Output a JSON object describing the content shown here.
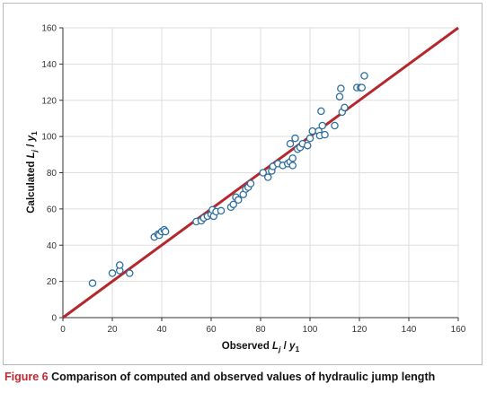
{
  "chart_data": {
    "type": "scatter",
    "xlabel": {
      "prefix": "Observed ",
      "var": "L",
      "sub1": "j",
      "mid": " / ",
      "var2": "y",
      "sub2": "1"
    },
    "ylabel": {
      "prefix": "Calculated ",
      "var": "L",
      "sub1": "j",
      "mid": " / ",
      "var2": "y",
      "sub2": "1"
    },
    "xlim": [
      0,
      160
    ],
    "ylim": [
      0,
      160
    ],
    "xticks": [
      0,
      20,
      40,
      60,
      80,
      100,
      120,
      140,
      160
    ],
    "yticks": [
      0,
      20,
      40,
      60,
      80,
      100,
      120,
      140,
      160
    ],
    "grid": true,
    "colors": {
      "points": "#2f6f9f",
      "line": "#b5272d",
      "grid": "#dedede"
    },
    "reference_line": {
      "x": [
        0,
        160
      ],
      "y": [
        0,
        160
      ]
    },
    "points": [
      [
        12,
        19
      ],
      [
        20,
        24.5
      ],
      [
        23,
        26
      ],
      [
        23,
        29
      ],
      [
        27,
        24.5
      ],
      [
        37,
        44.5
      ],
      [
        38.5,
        46
      ],
      [
        39,
        45.5
      ],
      [
        40,
        47.5
      ],
      [
        41,
        48.5
      ],
      [
        41.5,
        47.5
      ],
      [
        54,
        53
      ],
      [
        56,
        53.5
      ],
      [
        57,
        55
      ],
      [
        58.5,
        56
      ],
      [
        60,
        57
      ],
      [
        60.5,
        59.5
      ],
      [
        61,
        56
      ],
      [
        62,
        58.5
      ],
      [
        64,
        59
      ],
      [
        68,
        61
      ],
      [
        69,
        62.5
      ],
      [
        70,
        66.5
      ],
      [
        71,
        65
      ],
      [
        73,
        68
      ],
      [
        74,
        71
      ],
      [
        75,
        72
      ],
      [
        76,
        74
      ],
      [
        81,
        80
      ],
      [
        83,
        77.5
      ],
      [
        84.5,
        81
      ],
      [
        85,
        83.5
      ],
      [
        87,
        85
      ],
      [
        89,
        84
      ],
      [
        91,
        85
      ],
      [
        92,
        86
      ],
      [
        93,
        88
      ],
      [
        93,
        84
      ],
      [
        92,
        96
      ],
      [
        94,
        99
      ],
      [
        95,
        93
      ],
      [
        96,
        94
      ],
      [
        97,
        96
      ],
      [
        99,
        95
      ],
      [
        100,
        99
      ],
      [
        101,
        103
      ],
      [
        103.5,
        103
      ],
      [
        104,
        100.5
      ],
      [
        104.5,
        114
      ],
      [
        105,
        106
      ],
      [
        106,
        101
      ],
      [
        110,
        106
      ],
      [
        112,
        122
      ],
      [
        112.5,
        126.5
      ],
      [
        113,
        113.5
      ],
      [
        114,
        116
      ],
      [
        119,
        127
      ],
      [
        120.5,
        127
      ],
      [
        121,
        127
      ],
      [
        122,
        133.5
      ]
    ]
  },
  "caption": {
    "label": "Figure 6",
    "text": " Comparison of computed and observed values of hydraulic jump length"
  }
}
